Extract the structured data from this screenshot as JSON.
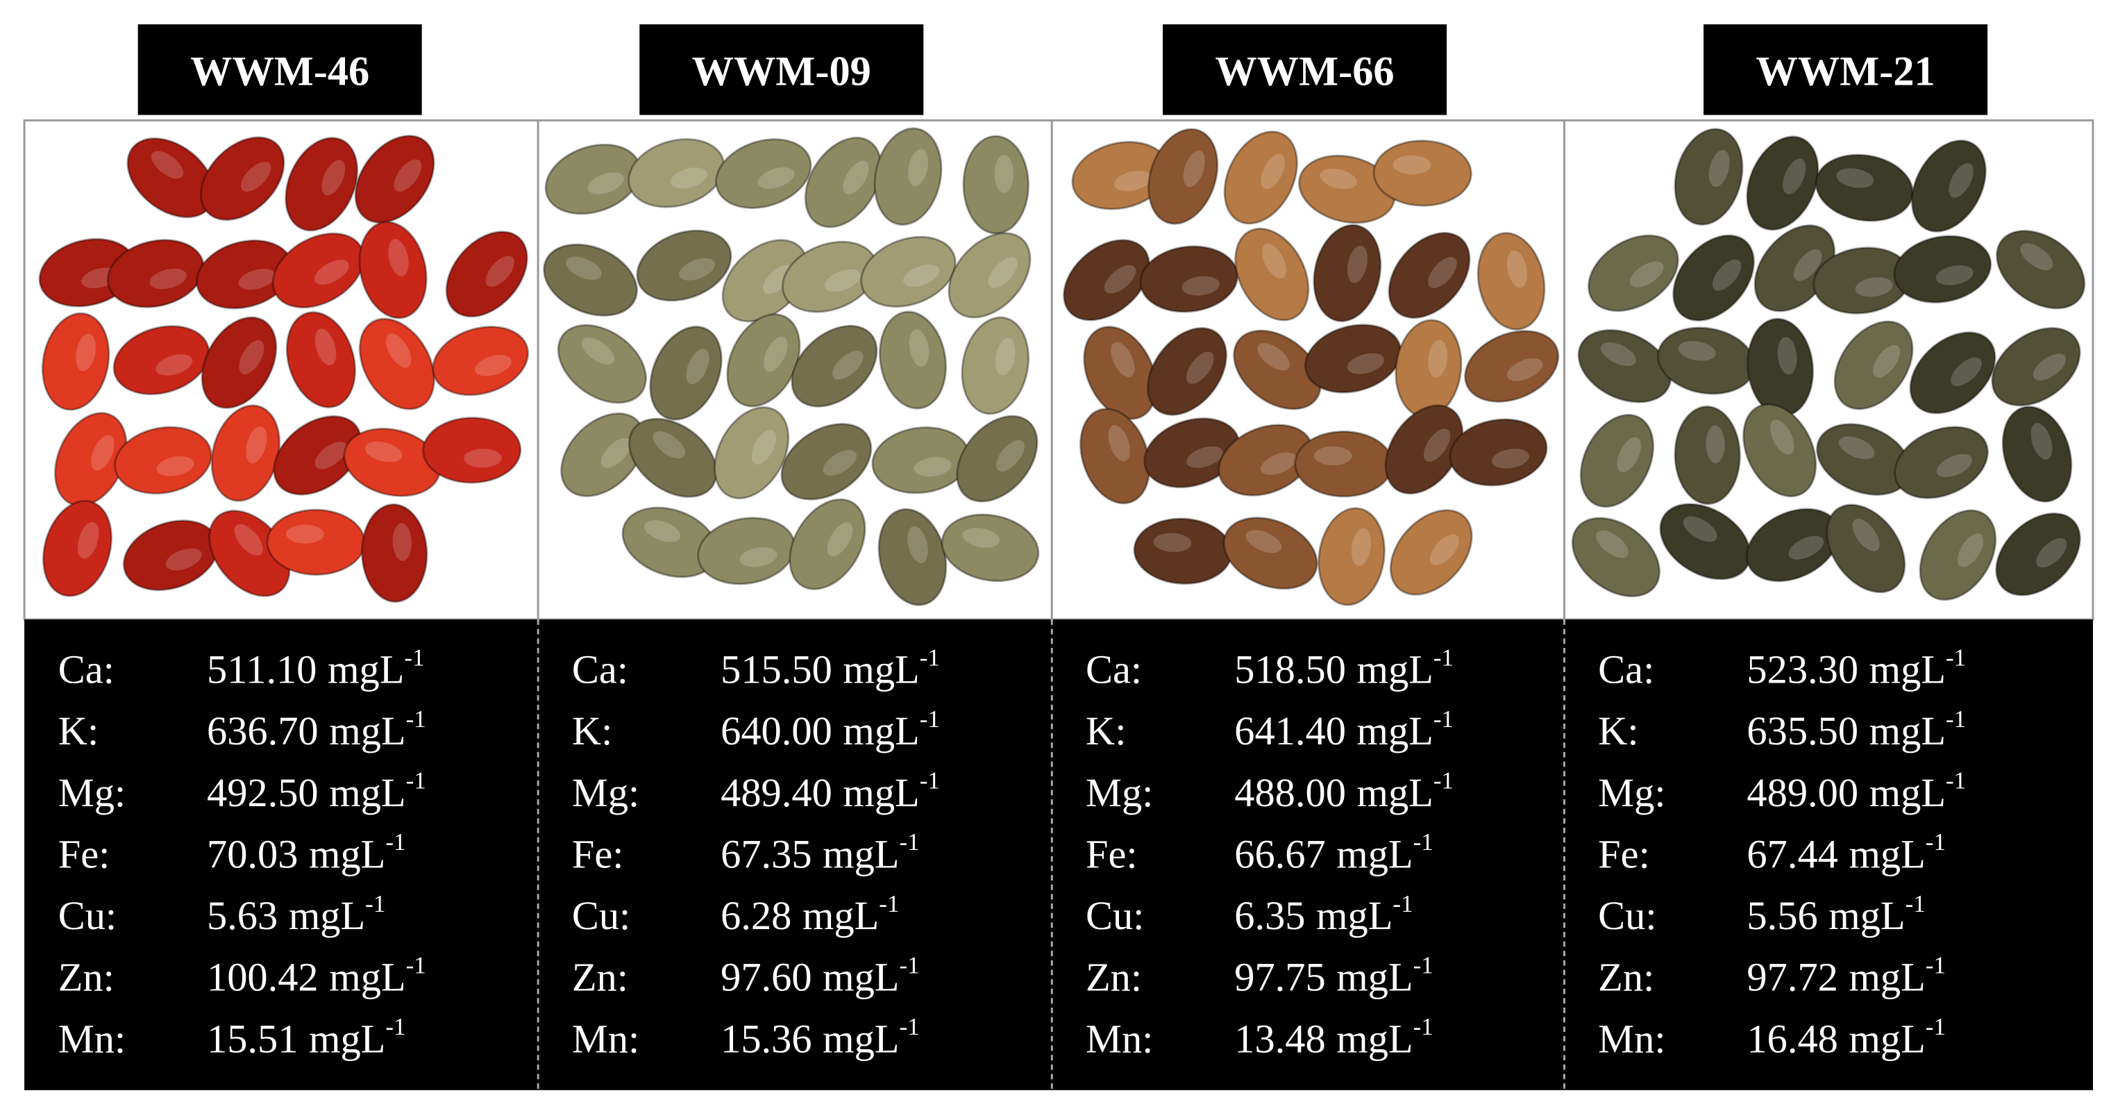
{
  "panels": [
    {
      "label": "WWM-46",
      "rows": [
        {
          "element": "Ca:",
          "value": "511.10",
          "unit": "mgL",
          "exp": "-1"
        },
        {
          "element": "K:",
          "value": "636.70",
          "unit": "mgL",
          "exp": "-1"
        },
        {
          "element": "Mg:",
          "value": "492.50",
          "unit": "mgL",
          "exp": "-1"
        },
        {
          "element": "Fe:",
          "value": "70.03",
          "unit": "mgL",
          "exp": "-1"
        },
        {
          "element": "Cu:",
          "value": "5.63",
          "unit": "mgL",
          "exp": "-1"
        },
        {
          "element": "Zn:",
          "value": "100.42",
          "unit": "mgL",
          "exp": "-1"
        },
        {
          "element": "Mn:",
          "value": "15.51",
          "unit": "mgL",
          "exp": "-1"
        }
      ]
    },
    {
      "label": "WWM-09",
      "rows": [
        {
          "element": "Ca:",
          "value": "515.50",
          "unit": "mgL",
          "exp": "-1"
        },
        {
          "element": "K:",
          "value": "640.00",
          "unit": "mgL",
          "exp": "-1"
        },
        {
          "element": "Mg:",
          "value": "489.40",
          "unit": "mgL",
          "exp": "-1"
        },
        {
          "element": "Fe:",
          "value": "67.35",
          "unit": "mgL",
          "exp": "-1"
        },
        {
          "element": "Cu:",
          "value": "6.28",
          "unit": "mgL",
          "exp": "-1"
        },
        {
          "element": "Zn:",
          "value": "97.60",
          "unit": "mgL",
          "exp": "-1"
        },
        {
          "element": "Mn:",
          "value": "15.36",
          "unit": "mgL",
          "exp": "-1"
        }
      ]
    },
    {
      "label": "WWM-66",
      "rows": [
        {
          "element": "Ca:",
          "value": "518.50",
          "unit": "mgL",
          "exp": "-1"
        },
        {
          "element": "K:",
          "value": "641.40",
          "unit": "mgL",
          "exp": "-1"
        },
        {
          "element": "Mg:",
          "value": "488.00",
          "unit": "mgL",
          "exp": "-1"
        },
        {
          "element": "Fe:",
          "value": "66.67",
          "unit": "mgL",
          "exp": "-1"
        },
        {
          "element": "Cu:",
          "value": "6.35",
          "unit": "mgL",
          "exp": "-1"
        },
        {
          "element": "Zn:",
          "value": "97.75",
          "unit": "mgL",
          "exp": "-1"
        },
        {
          "element": "Mn:",
          "value": "13.48",
          "unit": "mgL",
          "exp": "-1"
        }
      ]
    },
    {
      "label": "WWM-21",
      "rows": [
        {
          "element": "Ca:",
          "value": "523.30",
          "unit": "mgL",
          "exp": "-1"
        },
        {
          "element": "K:",
          "value": "635.50",
          "unit": "mgL",
          "exp": "-1"
        },
        {
          "element": "Mg:",
          "value": "489.00",
          "unit": "mgL",
          "exp": "-1"
        },
        {
          "element": "Fe:",
          "value": "67.44",
          "unit": "mgL",
          "exp": "-1"
        },
        {
          "element": "Cu:",
          "value": "5.56",
          "unit": "mgL",
          "exp": "-1"
        },
        {
          "element": "Zn:",
          "value": "97.72",
          "unit": "mgL",
          "exp": "-1"
        },
        {
          "element": "Mn:",
          "value": "16.48",
          "unit": "mgL",
          "exp": "-1"
        }
      ]
    }
  ]
}
